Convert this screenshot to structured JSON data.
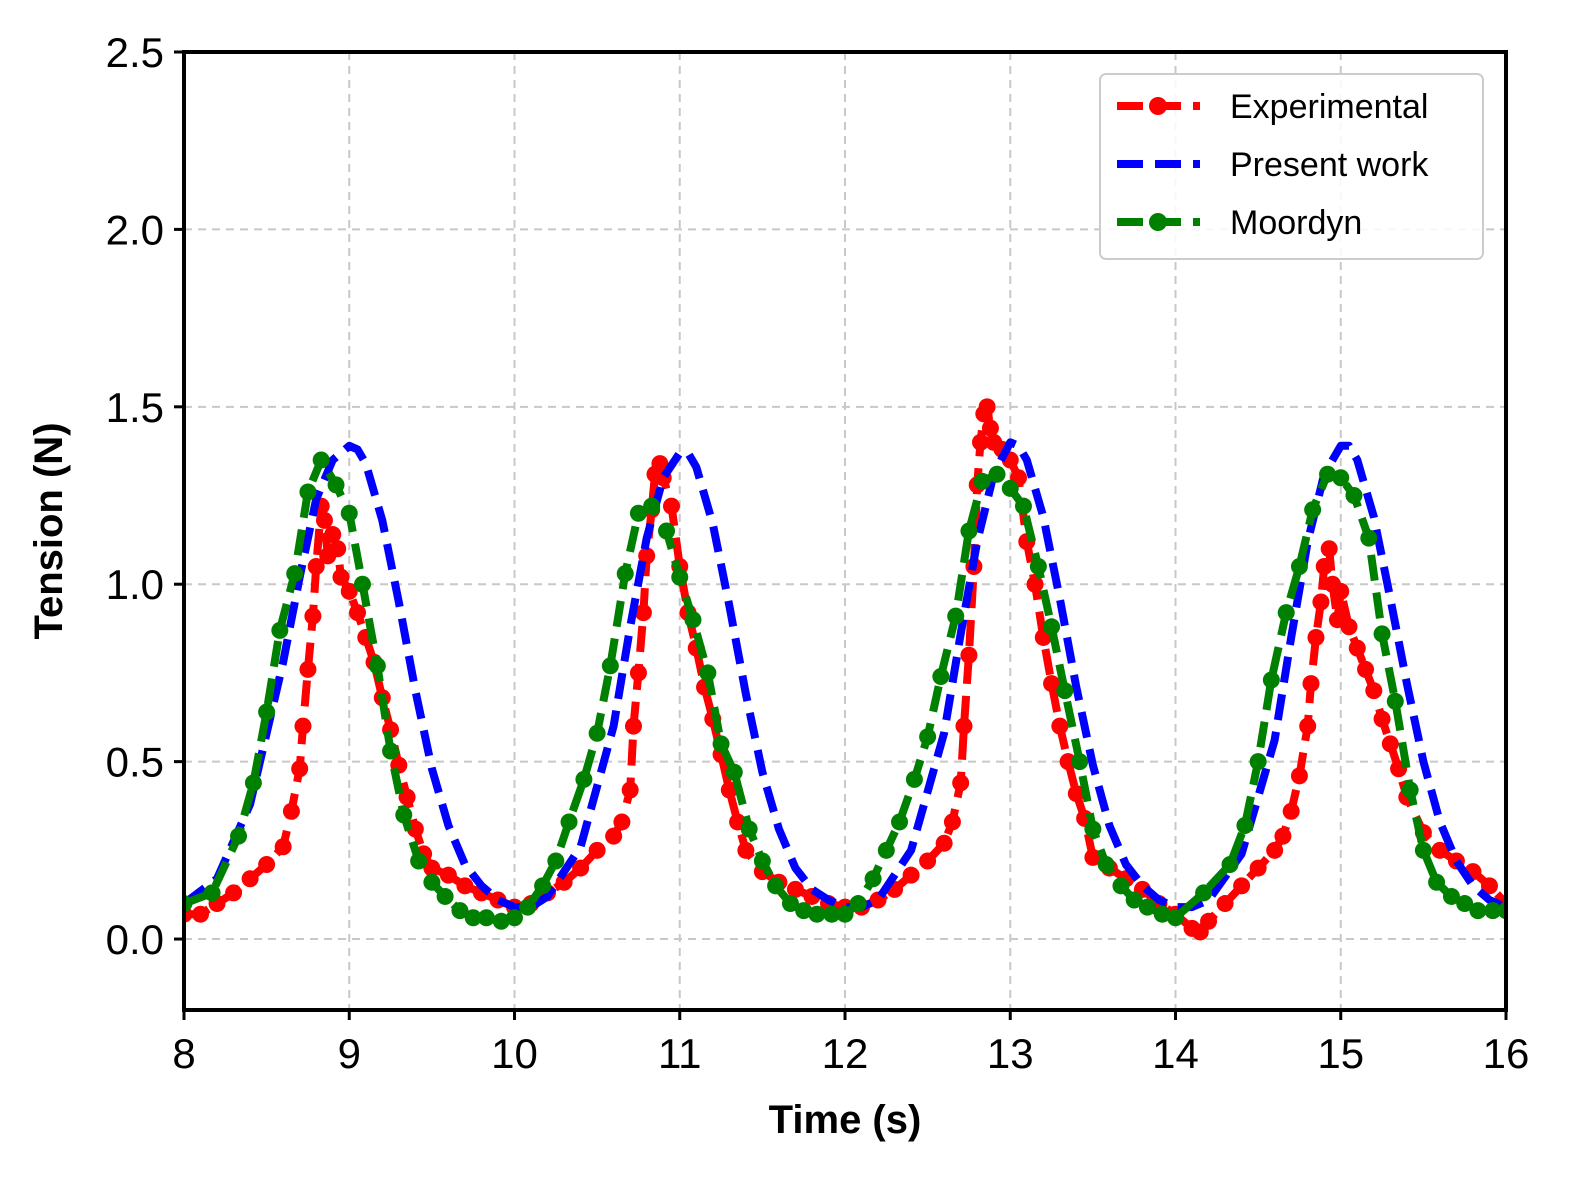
{
  "chart_data": {
    "type": "line",
    "title": "",
    "xlabel": "Time (s)",
    "ylabel": "Tension (N)",
    "xlim": [
      8,
      16
    ],
    "ylim": [
      -0.2,
      2.5
    ],
    "xticks": [
      8,
      9,
      10,
      11,
      12,
      13,
      14,
      15,
      16
    ],
    "xtick_labels": [
      "8",
      "9",
      "10",
      "11",
      "12",
      "13",
      "14",
      "15",
      "16"
    ],
    "yticks": [
      0.0,
      0.5,
      1.0,
      1.5,
      2.0,
      2.5
    ],
    "ytick_labels": [
      "0.0",
      "0.5",
      "1.0",
      "1.5",
      "2.0",
      "2.5"
    ],
    "grid": true,
    "legend_position": "top-right",
    "series": [
      {
        "name": "Experimental",
        "color": "#ff0000",
        "style": "dashed-dot-markers",
        "x": [
          8.0,
          8.1,
          8.2,
          8.3,
          8.4,
          8.5,
          8.6,
          8.65,
          8.7,
          8.72,
          8.75,
          8.78,
          8.8,
          8.83,
          8.85,
          8.87,
          8.9,
          8.93,
          8.95,
          9.0,
          9.05,
          9.1,
          9.15,
          9.2,
          9.25,
          9.3,
          9.35,
          9.4,
          9.45,
          9.5,
          9.6,
          9.7,
          9.8,
          9.9,
          10.0,
          10.1,
          10.2,
          10.3,
          10.4,
          10.5,
          10.6,
          10.65,
          10.7,
          10.72,
          10.75,
          10.78,
          10.8,
          10.83,
          10.85,
          10.88,
          10.9,
          10.95,
          11.0,
          11.05,
          11.1,
          11.15,
          11.2,
          11.25,
          11.3,
          11.35,
          11.4,
          11.5,
          11.6,
          11.7,
          11.8,
          11.9,
          12.0,
          12.1,
          12.2,
          12.3,
          12.4,
          12.5,
          12.6,
          12.65,
          12.7,
          12.72,
          12.75,
          12.78,
          12.8,
          12.82,
          12.84,
          12.86,
          12.88,
          12.9,
          12.95,
          13.0,
          13.05,
          13.1,
          13.15,
          13.2,
          13.25,
          13.3,
          13.35,
          13.4,
          13.45,
          13.5,
          13.6,
          13.7,
          13.8,
          13.9,
          14.0,
          14.1,
          14.15,
          14.2,
          14.3,
          14.4,
          14.5,
          14.6,
          14.65,
          14.7,
          14.75,
          14.8,
          14.82,
          14.85,
          14.88,
          14.9,
          14.93,
          14.95,
          14.98,
          15.0,
          15.05,
          15.1,
          15.15,
          15.2,
          15.25,
          15.3,
          15.35,
          15.4,
          15.5,
          15.6,
          15.7,
          15.8,
          15.9,
          16.0
        ],
        "y": [
          0.07,
          0.07,
          0.1,
          0.13,
          0.17,
          0.21,
          0.26,
          0.36,
          0.48,
          0.6,
          0.76,
          0.91,
          1.05,
          1.22,
          1.18,
          1.08,
          1.14,
          1.1,
          1.02,
          0.98,
          0.92,
          0.85,
          0.78,
          0.68,
          0.59,
          0.49,
          0.4,
          0.31,
          0.24,
          0.2,
          0.18,
          0.15,
          0.13,
          0.11,
          0.09,
          0.1,
          0.13,
          0.16,
          0.2,
          0.25,
          0.29,
          0.33,
          0.42,
          0.6,
          0.75,
          0.92,
          1.08,
          1.21,
          1.31,
          1.34,
          1.3,
          1.22,
          1.05,
          0.92,
          0.82,
          0.71,
          0.62,
          0.52,
          0.42,
          0.33,
          0.25,
          0.19,
          0.16,
          0.14,
          0.12,
          0.1,
          0.09,
          0.09,
          0.11,
          0.14,
          0.18,
          0.22,
          0.27,
          0.33,
          0.44,
          0.6,
          0.8,
          1.05,
          1.28,
          1.4,
          1.48,
          1.5,
          1.44,
          1.4,
          1.38,
          1.35,
          1.3,
          1.12,
          1.0,
          0.85,
          0.72,
          0.6,
          0.5,
          0.41,
          0.34,
          0.23,
          0.2,
          0.17,
          0.14,
          0.1,
          0.07,
          0.03,
          0.02,
          0.05,
          0.1,
          0.15,
          0.2,
          0.25,
          0.29,
          0.36,
          0.46,
          0.6,
          0.72,
          0.85,
          0.95,
          1.05,
          1.1,
          1.0,
          0.9,
          0.98,
          0.88,
          0.82,
          0.76,
          0.7,
          0.62,
          0.55,
          0.48,
          0.4,
          0.3,
          0.25,
          0.22,
          0.19,
          0.15,
          0.1
        ]
      },
      {
        "name": "Present work",
        "color": "#0000ff",
        "style": "dashed",
        "x": [
          8.0,
          8.2,
          8.4,
          8.6,
          8.7,
          8.8,
          8.9,
          9.0,
          9.05,
          9.1,
          9.2,
          9.3,
          9.4,
          9.5,
          9.6,
          9.7,
          9.8,
          9.9,
          10.0,
          10.1,
          10.2,
          10.4,
          10.6,
          10.7,
          10.8,
          10.9,
          11.0,
          11.05,
          11.1,
          11.2,
          11.3,
          11.4,
          11.5,
          11.6,
          11.7,
          11.8,
          11.9,
          12.0,
          12.1,
          12.2,
          12.4,
          12.6,
          12.7,
          12.8,
          12.9,
          13.0,
          13.05,
          13.1,
          13.2,
          13.3,
          13.4,
          13.5,
          13.6,
          13.7,
          13.8,
          13.9,
          14.0,
          14.1,
          14.2,
          14.4,
          14.6,
          14.7,
          14.8,
          14.9,
          15.0,
          15.05,
          15.1,
          15.2,
          15.3,
          15.4,
          15.5,
          15.6,
          15.7,
          15.8,
          15.9,
          16.0
        ],
        "y": [
          0.1,
          0.17,
          0.38,
          0.78,
          1.02,
          1.24,
          1.35,
          1.39,
          1.38,
          1.34,
          1.18,
          0.95,
          0.7,
          0.48,
          0.32,
          0.21,
          0.15,
          0.11,
          0.09,
          0.09,
          0.12,
          0.26,
          0.6,
          0.88,
          1.13,
          1.3,
          1.37,
          1.37,
          1.33,
          1.17,
          0.94,
          0.69,
          0.47,
          0.31,
          0.2,
          0.14,
          0.11,
          0.09,
          0.09,
          0.11,
          0.25,
          0.58,
          0.86,
          1.12,
          1.31,
          1.4,
          1.39,
          1.35,
          1.19,
          0.96,
          0.71,
          0.49,
          0.32,
          0.21,
          0.15,
          0.11,
          0.09,
          0.09,
          0.11,
          0.24,
          0.56,
          0.85,
          1.12,
          1.31,
          1.39,
          1.39,
          1.35,
          1.19,
          0.96,
          0.72,
          0.5,
          0.33,
          0.22,
          0.15,
          0.11,
          0.09
        ]
      },
      {
        "name": "Moordyn",
        "color": "#008000",
        "style": "dashed-dot-markers",
        "x": [
          8.0,
          8.17,
          8.33,
          8.42,
          8.5,
          8.58,
          8.67,
          8.75,
          8.83,
          8.92,
          9.0,
          9.08,
          9.17,
          9.25,
          9.33,
          9.42,
          9.5,
          9.58,
          9.67,
          9.75,
          9.83,
          9.92,
          10.0,
          10.08,
          10.17,
          10.25,
          10.33,
          10.42,
          10.5,
          10.58,
          10.67,
          10.75,
          10.83,
          10.92,
          11.0,
          11.08,
          11.17,
          11.25,
          11.33,
          11.42,
          11.5,
          11.58,
          11.67,
          11.75,
          11.83,
          11.92,
          12.0,
          12.08,
          12.17,
          12.25,
          12.33,
          12.42,
          12.5,
          12.58,
          12.67,
          12.75,
          12.83,
          12.92,
          13.0,
          13.08,
          13.17,
          13.25,
          13.33,
          13.42,
          13.5,
          13.58,
          13.67,
          13.75,
          13.83,
          13.92,
          14.0,
          14.17,
          14.33,
          14.42,
          14.5,
          14.58,
          14.67,
          14.75,
          14.83,
          14.92,
          15.0,
          15.08,
          15.17,
          15.25,
          15.33,
          15.42,
          15.5,
          15.58,
          15.67,
          15.75,
          15.83,
          15.92,
          16.0
        ],
        "y": [
          0.1,
          0.13,
          0.29,
          0.44,
          0.64,
          0.87,
          1.03,
          1.26,
          1.35,
          1.28,
          1.2,
          1.0,
          0.77,
          0.53,
          0.35,
          0.22,
          0.16,
          0.12,
          0.08,
          0.06,
          0.06,
          0.05,
          0.06,
          0.09,
          0.15,
          0.22,
          0.33,
          0.45,
          0.58,
          0.77,
          1.03,
          1.2,
          1.22,
          1.15,
          1.02,
          0.9,
          0.75,
          0.55,
          0.47,
          0.31,
          0.22,
          0.15,
          0.1,
          0.08,
          0.07,
          0.07,
          0.07,
          0.1,
          0.17,
          0.25,
          0.33,
          0.45,
          0.57,
          0.74,
          0.91,
          1.15,
          1.29,
          1.31,
          1.27,
          1.22,
          1.05,
          0.88,
          0.7,
          0.5,
          0.31,
          0.21,
          0.15,
          0.11,
          0.09,
          0.07,
          0.06,
          0.13,
          0.21,
          0.32,
          0.5,
          0.73,
          0.92,
          1.05,
          1.21,
          1.31,
          1.3,
          1.25,
          1.13,
          0.86,
          0.67,
          0.42,
          0.25,
          0.16,
          0.12,
          0.1,
          0.08,
          0.08,
          0.08
        ]
      }
    ]
  }
}
